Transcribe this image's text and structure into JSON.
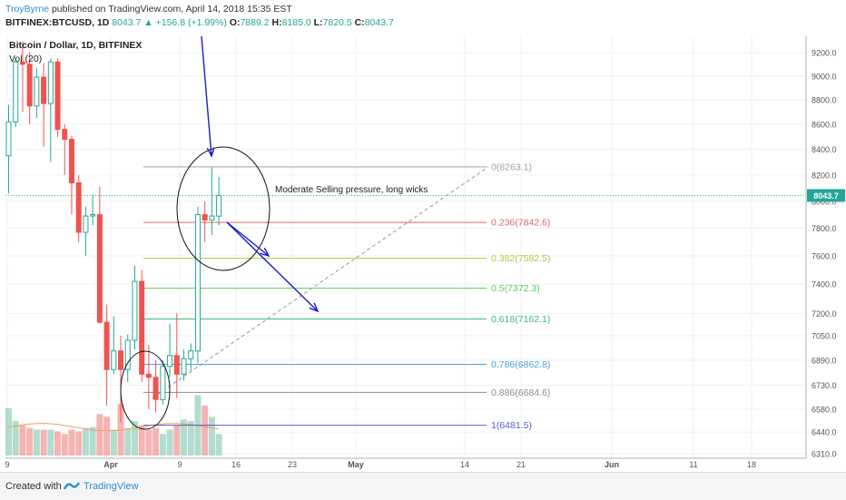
{
  "header": {
    "author": "TroyByrne",
    "published_text": "published on TradingView.com, April 14, 2018 15:35 EST",
    "symbol": "BITFINEX:BTCUSD, 1D",
    "last": "8043.7",
    "change": "▲ +156.8 (+1.99%)",
    "o_label": "O:",
    "o": "7889.2",
    "h_label": "H:",
    "h": "8185.0",
    "l_label": "L:",
    "l": "7820.5",
    "c_label": "C:",
    "c": "8043.7"
  },
  "legend": {
    "title": "Bitcoin / Dollar, 1D, BITFINEX",
    "volume": "Vol (20)"
  },
  "footer": {
    "created_with": "Created with",
    "brand": "TradingView"
  },
  "colors": {
    "up": "#26a69a",
    "down": "#ef5350",
    "volume_up": "#a5d6c6",
    "volume_down": "#f2a7a7",
    "ma": "#f0a060",
    "arrow": "#1c1cc8",
    "grid": "#eef1f4",
    "price_tag": "#26a69a"
  },
  "chart_data": {
    "type": "candlestick",
    "y_axis": {
      "ticks": [
        "9200.0",
        "9000.0",
        "8800.0",
        "8600.0",
        "8400.0",
        "8200.0",
        "8000.0",
        "7800.0",
        "7600.0",
        "7400.0",
        "7200.0",
        "7050.0",
        "6890.0",
        "6730.0",
        "6580.0",
        "6440.0",
        "6310.0"
      ],
      "scale": "log",
      "range": [
        6310,
        9300
      ]
    },
    "x_axis": {
      "ticks": [
        "9",
        "Apr",
        "9",
        "16",
        "23",
        "May",
        "14",
        "21",
        "Jun",
        "11",
        "18"
      ]
    },
    "last_price_tag": "8043.7",
    "candles": [
      {
        "o": 8350,
        "h": 8760,
        "l": 8060,
        "c": 8620
      },
      {
        "o": 8620,
        "h": 9150,
        "l": 8580,
        "c": 9120
      },
      {
        "o": 9120,
        "h": 9300,
        "l": 8700,
        "c": 9100
      },
      {
        "o": 9100,
        "h": 9200,
        "l": 8600,
        "c": 8750
      },
      {
        "o": 8750,
        "h": 9070,
        "l": 8650,
        "c": 8990
      },
      {
        "o": 8990,
        "h": 9110,
        "l": 8420,
        "c": 8770
      },
      {
        "o": 8770,
        "h": 9150,
        "l": 8300,
        "c": 9120
      },
      {
        "o": 9120,
        "h": 9150,
        "l": 8500,
        "c": 8560
      },
      {
        "o": 8560,
        "h": 8600,
        "l": 8200,
        "c": 8480
      },
      {
        "o": 8480,
        "h": 8510,
        "l": 7900,
        "c": 8140
      },
      {
        "o": 8140,
        "h": 8200,
        "l": 7700,
        "c": 7770
      },
      {
        "o": 7770,
        "h": 7960,
        "l": 7600,
        "c": 7890
      },
      {
        "o": 7890,
        "h": 8050,
        "l": 7820,
        "c": 7900
      },
      {
        "o": 7900,
        "h": 8110,
        "l": 7130,
        "c": 7140
      },
      {
        "o": 7140,
        "h": 7260,
        "l": 6600,
        "c": 6830
      },
      {
        "o": 6830,
        "h": 7180,
        "l": 6800,
        "c": 6950
      },
      {
        "o": 6950,
        "h": 7050,
        "l": 6500,
        "c": 6830
      },
      {
        "o": 6830,
        "h": 7060,
        "l": 6750,
        "c": 7020
      },
      {
        "o": 7020,
        "h": 7530,
        "l": 6960,
        "c": 7420
      },
      {
        "o": 7420,
        "h": 7500,
        "l": 6750,
        "c": 6800
      },
      {
        "o": 6800,
        "h": 6990,
        "l": 6580,
        "c": 6780
      },
      {
        "o": 6780,
        "h": 6890,
        "l": 6560,
        "c": 6640
      },
      {
        "o": 6640,
        "h": 6890,
        "l": 6610,
        "c": 6850
      },
      {
        "o": 6850,
        "h": 7130,
        "l": 6780,
        "c": 6920
      },
      {
        "o": 6920,
        "h": 7200,
        "l": 6650,
        "c": 6800
      },
      {
        "o": 6800,
        "h": 6960,
        "l": 6760,
        "c": 6900
      },
      {
        "o": 6900,
        "h": 7000,
        "l": 6820,
        "c": 6950
      },
      {
        "o": 6950,
        "h": 7960,
        "l": 6870,
        "c": 7900
      },
      {
        "o": 7900,
        "h": 8000,
        "l": 7700,
        "c": 7860
      },
      {
        "o": 7860,
        "h": 8260,
        "l": 7750,
        "c": 7890
      },
      {
        "o": 7889.2,
        "h": 8185.0,
        "l": 7820.5,
        "c": 8043.7
      }
    ],
    "volume_relative": [
      0.55,
      0.4,
      0.35,
      0.32,
      0.3,
      0.3,
      0.3,
      0.28,
      0.25,
      0.3,
      0.28,
      0.32,
      0.33,
      0.48,
      0.45,
      0.3,
      0.6,
      0.32,
      0.4,
      0.35,
      0.3,
      0.32,
      0.25,
      0.3,
      0.35,
      0.42,
      0.4,
      0.7,
      0.58,
      0.45,
      0.25
    ],
    "fibonacci": [
      {
        "label": "0(8263.1)",
        "price": 8263.1,
        "color": "#a0a0a0"
      },
      {
        "label": "0.236(7842.6)",
        "price": 7842.6,
        "color": "#e06666"
      },
      {
        "label": "0.382(7582.5)",
        "price": 7582.5,
        "color": "#b5c94a"
      },
      {
        "label": "0.5(7372.3)",
        "price": 7372.3,
        "color": "#5bc95b"
      },
      {
        "label": "0.618(7162.1)",
        "price": 7162.1,
        "color": "#3cb878"
      },
      {
        "label": "0.786(6862.8)",
        "price": 6862.8,
        "color": "#4aa0d8"
      },
      {
        "label": "0.886(6684.6)",
        "price": 6684.6,
        "color": "#8c8c8c"
      },
      {
        "label": "1(6481.5)",
        "price": 6481.5,
        "color": "#5b5bd0"
      }
    ],
    "annotation": "Moderate Selling pressure, long wicks"
  }
}
